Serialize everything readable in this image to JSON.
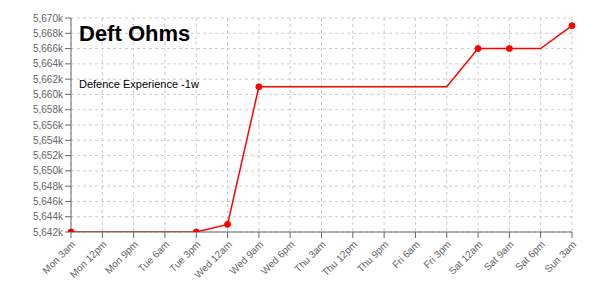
{
  "chart_data": {
    "type": "line",
    "title": "Deft Ohms",
    "subtitle": "Defence Experience -1w",
    "categories": [
      "Mon 3am",
      "Mon 12pm",
      "Mon 9pm",
      "Tue 6am",
      "Tue 3pm",
      "Wed 12am",
      "Wed 9am",
      "Wed 6pm",
      "Thu 3am",
      "Thu 12pm",
      "Thu 9pm",
      "Fri 6am",
      "Fri 3pm",
      "Sat 12am",
      "Sat 9am",
      "Sat 6pm",
      "Sun 3am"
    ],
    "values": [
      5642,
      5642,
      5642,
      5642,
      5642,
      5643,
      5661,
      5661,
      5661,
      5661,
      5661,
      5661,
      5661,
      5666,
      5666,
      5666,
      5669
    ],
    "marker_values": [
      5642,
      null,
      null,
      null,
      5642,
      5643,
      5661,
      null,
      null,
      null,
      null,
      null,
      null,
      5666,
      5666,
      null,
      5669
    ],
    "color": "#ff0000",
    "marker": "circle",
    "ylim": [
      5642,
      5670
    ],
    "yticks": [
      {
        "value": 5642,
        "label": "5,642k"
      },
      {
        "value": 5644,
        "label": "5,644k"
      },
      {
        "value": 5646,
        "label": "5,646k"
      },
      {
        "value": 5648,
        "label": "5,648k"
      },
      {
        "value": 5650,
        "label": "5,650k"
      },
      {
        "value": 5652,
        "label": "5,652k"
      },
      {
        "value": 5654,
        "label": "5,654k"
      },
      {
        "value": 5656,
        "label": "5,656k"
      },
      {
        "value": 5658,
        "label": "5,658k"
      },
      {
        "value": 5660,
        "label": "5,660k"
      },
      {
        "value": 5662,
        "label": "5,662k"
      },
      {
        "value": 5664,
        "label": "5,664k"
      },
      {
        "value": 5666,
        "label": "5,666k"
      },
      {
        "value": 5668,
        "label": "5,668k"
      },
      {
        "value": 5670,
        "label": "5,670k"
      }
    ],
    "grid": true
  }
}
